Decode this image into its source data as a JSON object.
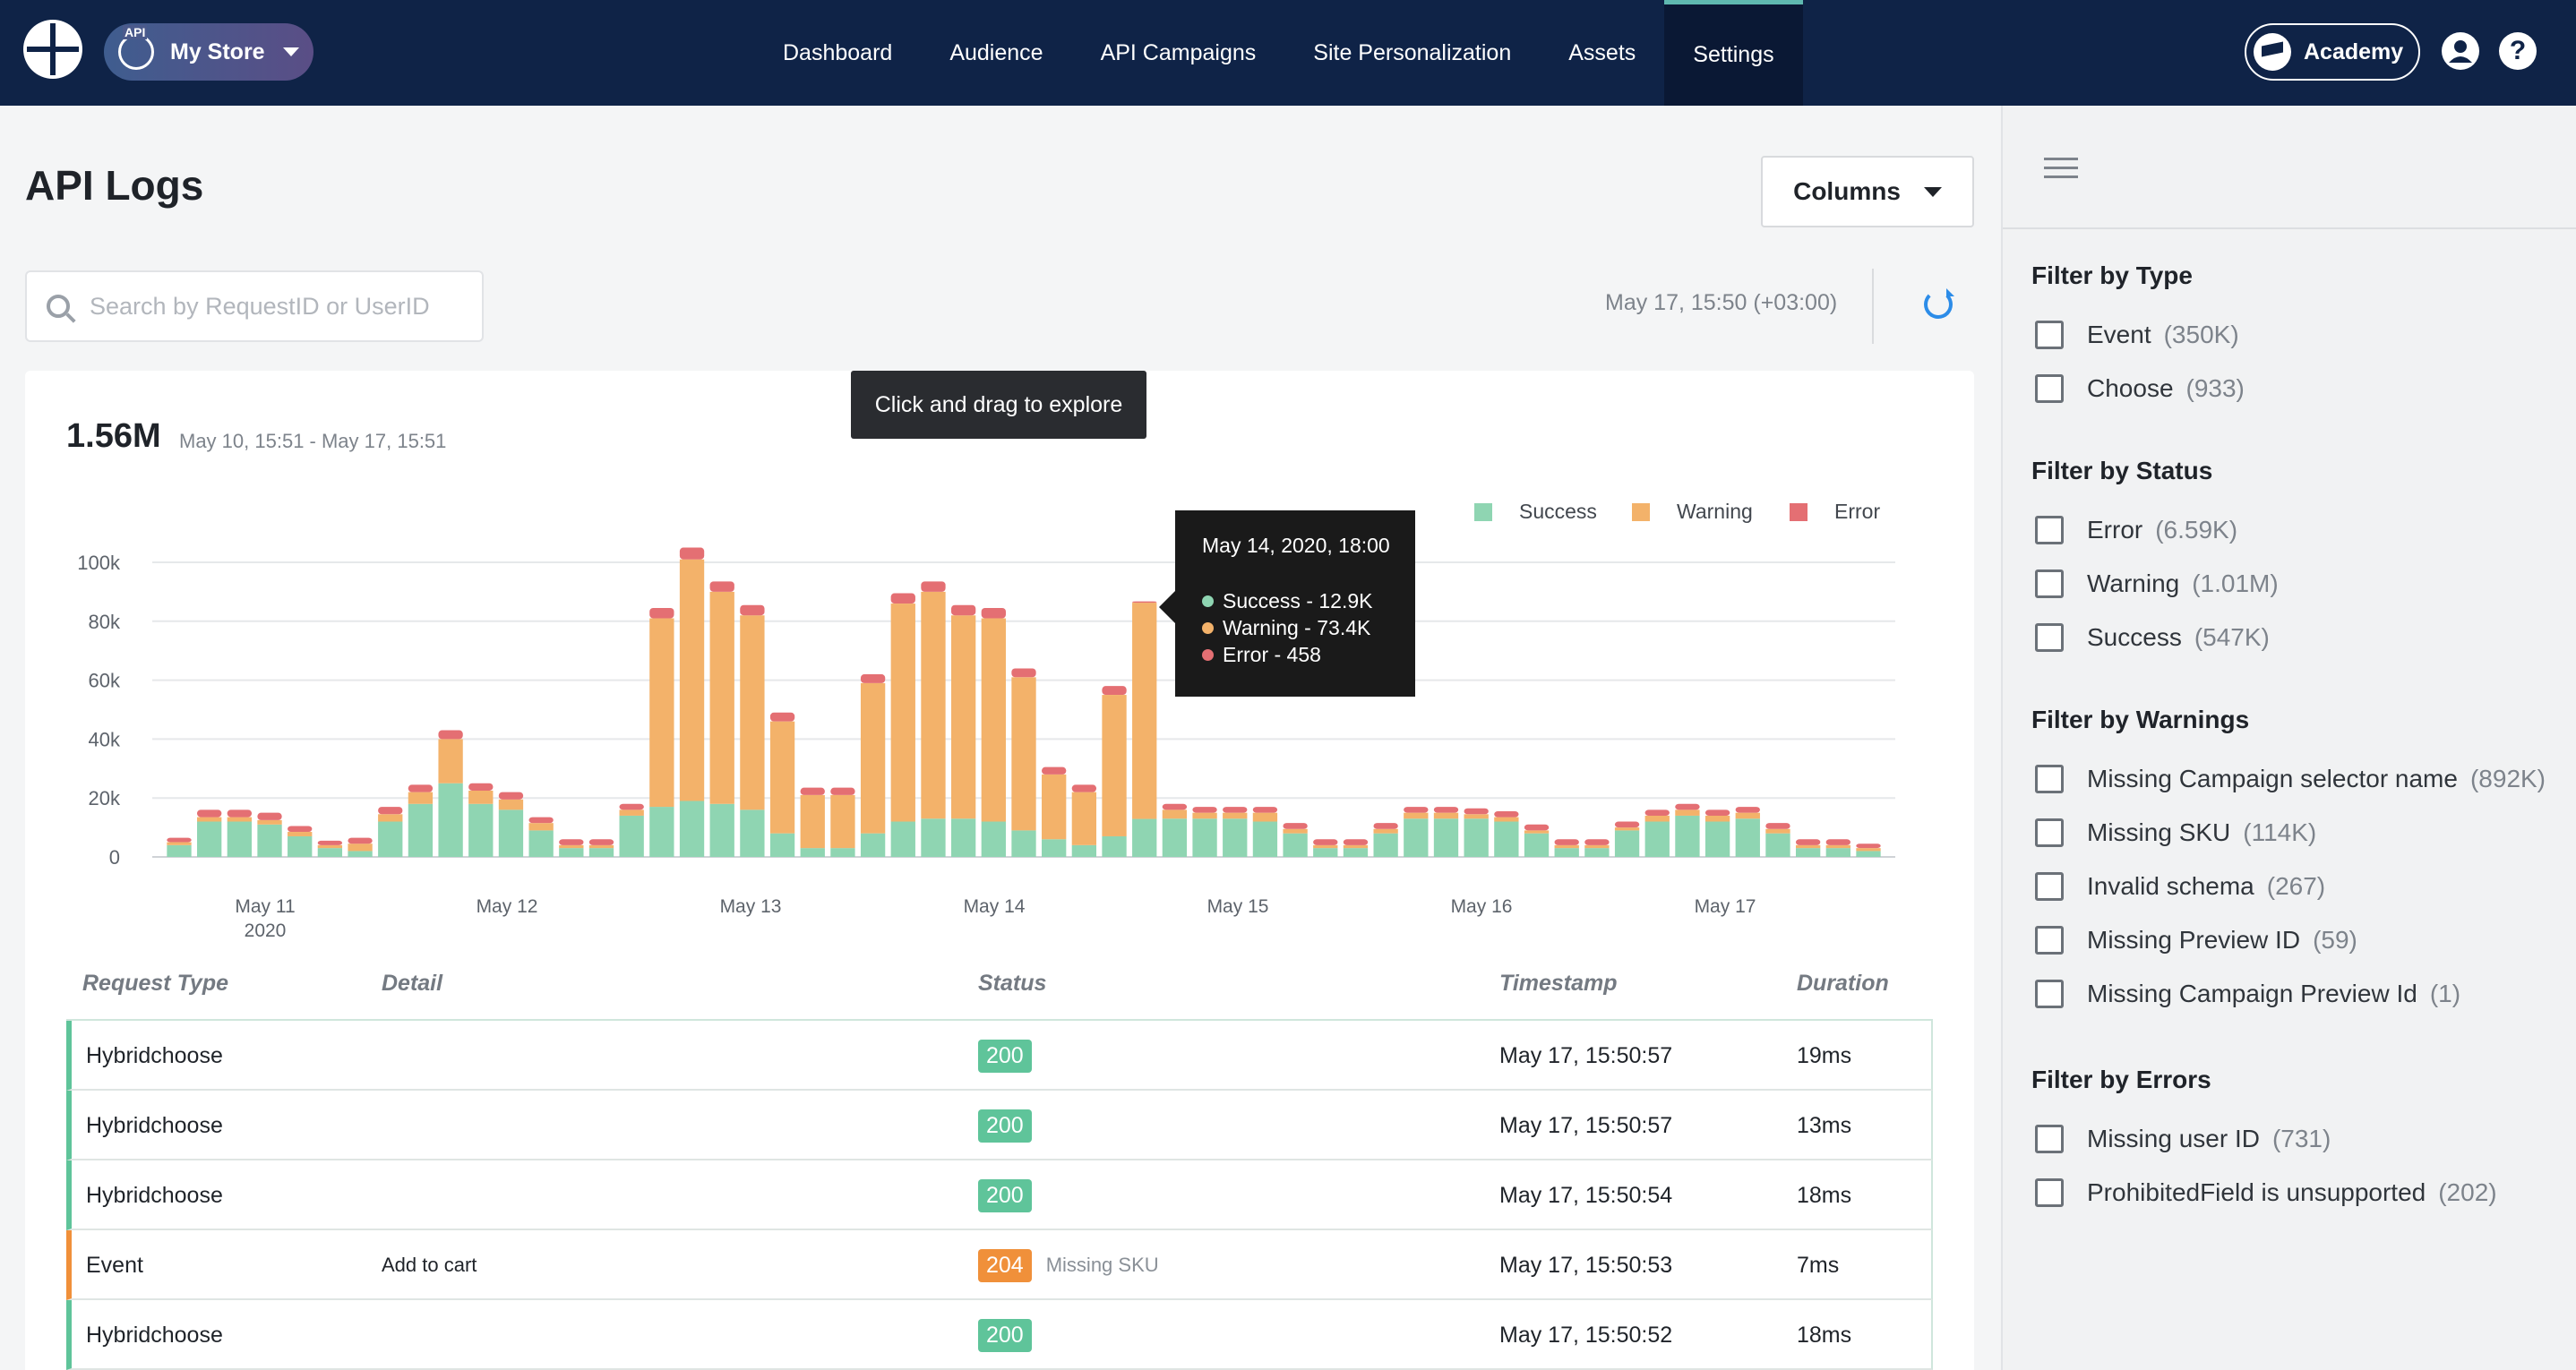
{
  "topbar": {
    "store_badge": "API",
    "store_name": "My Store",
    "nav": [
      "Dashboard",
      "Audience",
      "API Campaigns",
      "Site Personalization",
      "Assets",
      "Settings"
    ],
    "active_nav": "Settings",
    "academy_label": "Academy",
    "help_label": "?"
  },
  "page": {
    "title": "API Logs",
    "columns_label": "Columns",
    "search_placeholder": "Search by RequestID or UserID",
    "last_updated": "May 17, 15:50 (+03:00)"
  },
  "chart_panel": {
    "drag_hint": "Click and drag to explore",
    "total": "1.56M",
    "range": "May 10, 15:51 - May 17, 15:51",
    "tooltip": {
      "title": "May 14, 2020, 18:00",
      "rows": [
        "Success - 12.9K",
        "Warning - 73.4K",
        "Error - 458"
      ]
    }
  },
  "chart_data": {
    "type": "bar",
    "stacked": true,
    "legend_position": "top-right",
    "y_ticks": [
      "100k",
      "80k",
      "60k",
      "40k",
      "20k",
      "0"
    ],
    "ylim": [
      0,
      100000
    ],
    "x_ticks": [
      {
        "label": "May 11",
        "sub": "2020"
      },
      {
        "label": "May 12",
        "sub": ""
      },
      {
        "label": "May 13",
        "sub": ""
      },
      {
        "label": "May 14",
        "sub": ""
      },
      {
        "label": "May 15",
        "sub": ""
      },
      {
        "label": "May 16",
        "sub": ""
      },
      {
        "label": "May 17",
        "sub": ""
      }
    ],
    "colors": {
      "Success": "#8fd5b2",
      "Warning": "#f3b26a",
      "Error": "#e46f73"
    },
    "series": [
      {
        "name": "Success",
        "values": [
          4000,
          12000,
          12000,
          11000,
          7000,
          3000,
          2000,
          12000,
          18000,
          25000,
          18000,
          16000,
          9000,
          3000,
          3000,
          14000,
          17000,
          19000,
          18000,
          16000,
          8000,
          3000,
          3000,
          8000,
          12000,
          13000,
          13000,
          12000,
          9000,
          6000,
          4000,
          7000,
          12900,
          13000,
          13000,
          13000,
          12000,
          8000,
          3000,
          3000,
          8000,
          13000,
          13000,
          13000,
          12000,
          8000,
          3000,
          3000,
          9000,
          12000,
          14000,
          12000,
          13000,
          8000,
          3000,
          3000,
          2000
        ]
      },
      {
        "name": "Warning",
        "values": [
          1000,
          1500,
          1500,
          1500,
          1500,
          1000,
          2500,
          2500,
          4000,
          15000,
          4500,
          3500,
          2500,
          1000,
          1000,
          2000,
          64000,
          82000,
          72000,
          66000,
          38000,
          18000,
          18000,
          51000,
          74000,
          77000,
          69000,
          69000,
          52000,
          22000,
          18000,
          48000,
          73400,
          3000,
          2000,
          2000,
          3000,
          1500,
          1000,
          1000,
          1500,
          2000,
          2000,
          1500,
          1500,
          1000,
          1000,
          1000,
          1000,
          2000,
          2000,
          2000,
          2000,
          1500,
          1000,
          1000,
          1000
        ]
      },
      {
        "name": "Error",
        "values": [
          1500,
          2500,
          2500,
          2500,
          2000,
          1500,
          2000,
          2500,
          2500,
          3000,
          2500,
          2500,
          2000,
          2000,
          2000,
          2000,
          3500,
          4000,
          3500,
          3500,
          3000,
          2500,
          2500,
          3000,
          3500,
          3500,
          3500,
          3500,
          3000,
          2500,
          2500,
          3000,
          458,
          2000,
          2000,
          2000,
          2000,
          2000,
          2000,
          2000,
          2000,
          2000,
          2000,
          2000,
          2000,
          2000,
          2000,
          2000,
          2000,
          2000,
          2000,
          2000,
          2000,
          2000,
          2000,
          2000,
          1500
        ]
      }
    ]
  },
  "table": {
    "headers": [
      "Request Type",
      "Detail",
      "Status",
      "Timestamp",
      "Duration"
    ],
    "rows": [
      {
        "type": "Hybridchoose",
        "detail": "",
        "status": "200",
        "note": "",
        "timestamp": "May 17, 15:50:57",
        "duration": "19ms"
      },
      {
        "type": "Hybridchoose",
        "detail": "",
        "status": "200",
        "note": "",
        "timestamp": "May 17, 15:50:57",
        "duration": "13ms"
      },
      {
        "type": "Hybridchoose",
        "detail": "",
        "status": "200",
        "note": "",
        "timestamp": "May 17, 15:50:54",
        "duration": "18ms"
      },
      {
        "type": "Event",
        "detail": "Add to cart",
        "status": "204",
        "note": "Missing SKU",
        "timestamp": "May 17, 15:50:53",
        "duration": "7ms"
      },
      {
        "type": "Hybridchoose",
        "detail": "",
        "status": "200",
        "note": "",
        "timestamp": "May 17, 15:50:52",
        "duration": "18ms"
      }
    ]
  },
  "filters": [
    {
      "title": "Filter by Type",
      "items": [
        {
          "label": "Event",
          "count": "(350K)"
        },
        {
          "label": "Choose",
          "count": "(933)"
        }
      ]
    },
    {
      "title": "Filter by Status",
      "items": [
        {
          "label": "Error",
          "count": "(6.59K)"
        },
        {
          "label": "Warning",
          "count": "(1.01M)"
        },
        {
          "label": "Success",
          "count": "(547K)"
        }
      ]
    },
    {
      "title": "Filter by Warnings",
      "items": [
        {
          "label": "Missing Campaign selector name",
          "count": "(892K)"
        },
        {
          "label": "Missing SKU",
          "count": "(114K)"
        },
        {
          "label": "Invalid schema",
          "count": "(267)"
        },
        {
          "label": "Missing Preview ID",
          "count": "(59)"
        },
        {
          "label": "Missing Campaign Preview Id",
          "count": "(1)"
        }
      ]
    },
    {
      "title": "Filter by Errors",
      "items": [
        {
          "label": "Missing user ID",
          "count": "(731)"
        },
        {
          "label": "ProhibitedField is unsupported",
          "count": "(202)"
        }
      ]
    }
  ]
}
